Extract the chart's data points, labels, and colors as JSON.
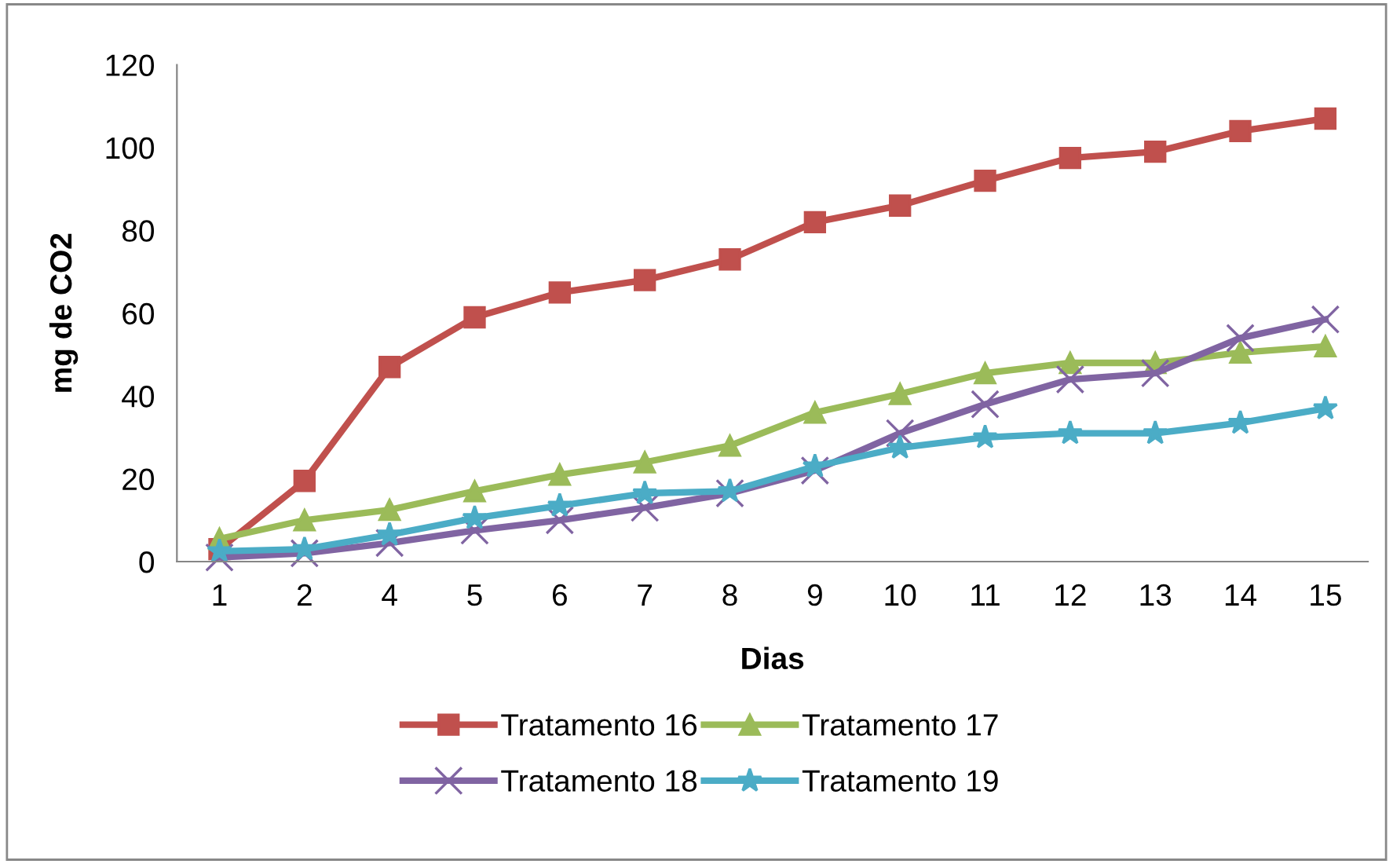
{
  "chart_data": {
    "type": "line",
    "xlabel": "Dias",
    "ylabel": "mg de CO2",
    "categories": [
      "1",
      "2",
      "4",
      "5",
      "6",
      "7",
      "8",
      "9",
      "10",
      "11",
      "12",
      "13",
      "14",
      "15"
    ],
    "ylim": [
      0,
      120
    ],
    "yticks": [
      0,
      20,
      40,
      60,
      80,
      100,
      120
    ],
    "grid": false,
    "legend": "bottom",
    "line_style": "solid",
    "series": [
      {
        "name": "Tratamento 16",
        "color": "#c0504d",
        "marker": "square",
        "values": [
          3,
          19.5,
          47,
          59,
          65,
          68,
          73,
          82,
          86,
          92,
          97.5,
          99,
          104,
          107
        ]
      },
      {
        "name": "Tratamento 17",
        "color": "#9bbb59",
        "marker": "triangle",
        "values": [
          5.5,
          10,
          12.5,
          17,
          21,
          24,
          28,
          36,
          40.5,
          45.5,
          48,
          48,
          50.5,
          52
        ]
      },
      {
        "name": "Tratamento 18",
        "color": "#8064a2",
        "marker": "cross",
        "values": [
          1,
          2,
          4.5,
          7.5,
          10,
          13,
          16.5,
          22,
          31,
          38,
          44,
          45.5,
          54,
          58.5
        ]
      },
      {
        "name": "Tratamento 19",
        "color": "#4bacc6",
        "marker": "star",
        "values": [
          2.5,
          3,
          6.5,
          10.5,
          13.5,
          16.5,
          17,
          23,
          27.5,
          30,
          31,
          31,
          33.5,
          37
        ]
      }
    ]
  }
}
